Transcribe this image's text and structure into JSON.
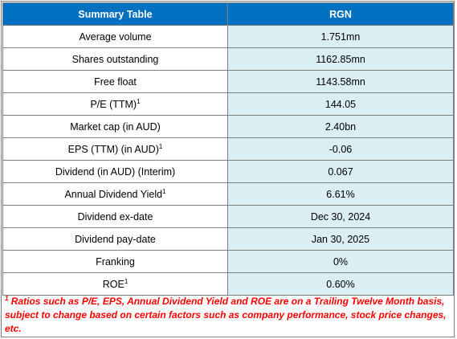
{
  "table": {
    "header_label": "Summary Table",
    "header_value": "RGN",
    "rows": [
      {
        "label": "Average volume",
        "sup": "",
        "value": "1.751mn"
      },
      {
        "label": "Shares outstanding",
        "sup": "",
        "value": "1162.85mn"
      },
      {
        "label": "Free float",
        "sup": "",
        "value": "1143.58mn"
      },
      {
        "label": "P/E (TTM)",
        "sup": "1",
        "value": "144.05"
      },
      {
        "label": "Market cap (in AUD)",
        "sup": "",
        "value": "2.40bn"
      },
      {
        "label": "EPS (TTM) (in AUD)",
        "sup": "1",
        "value": "-0.06"
      },
      {
        "label": "Dividend (in AUD) (Interim)",
        "sup": "",
        "value": "0.067"
      },
      {
        "label": "Annual Dividend Yield",
        "sup": "1",
        "value": "6.61%"
      },
      {
        "label": "Dividend ex-date",
        "sup": "",
        "value": "Dec 30, 2024"
      },
      {
        "label": "Dividend pay-date",
        "sup": "",
        "value": "Jan 30, 2025"
      },
      {
        "label": "Franking",
        "sup": "",
        "value": "0%"
      },
      {
        "label": "ROE",
        "sup": "1",
        "value": "0.60%"
      }
    ]
  },
  "footnote": {
    "marker": "1",
    "text": " Ratios such as P/E, EPS, Annual Dividend Yield and ROE are on a Trailing Twelve Month basis, subject to change based on certain factors such as company performance, stock price changes, etc."
  },
  "colors": {
    "header_bg": "#0070c0",
    "value_bg": "#daeef3",
    "footnote": "#ff0000"
  }
}
